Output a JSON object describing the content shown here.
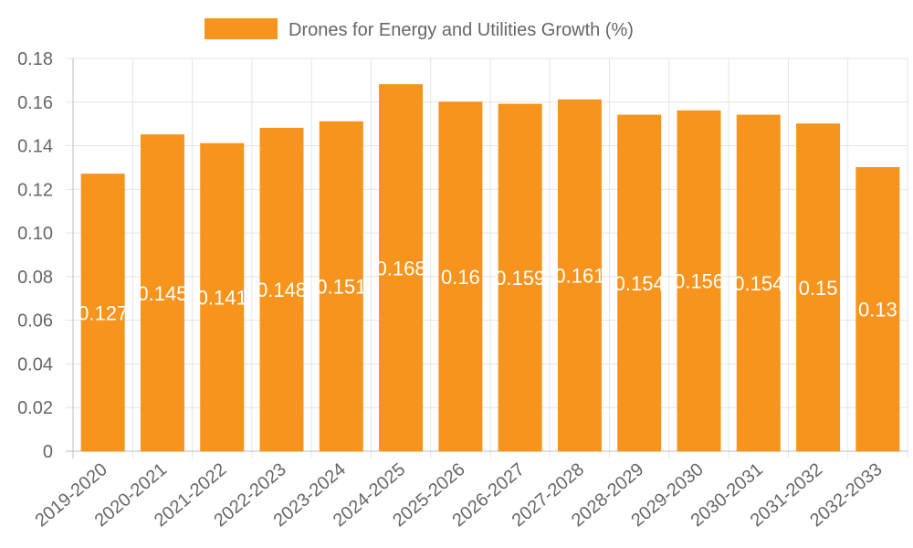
{
  "chart_data": {
    "type": "bar",
    "legend": {
      "label": "Drones for Energy and Utilities Growth (%)",
      "position": "top"
    },
    "categories": [
      "2019-2020",
      "2020-2021",
      "2021-2022",
      "2022-2023",
      "2023-2024",
      "2024-2025",
      "2025-2026",
      "2026-2027",
      "2027-2028",
      "2028-2029",
      "2029-2030",
      "2030-2031",
      "2031-2032",
      "2032-2033"
    ],
    "series": [
      {
        "name": "Drones for Energy and Utilities Growth (%)",
        "values": [
          0.127,
          0.145,
          0.141,
          0.148,
          0.151,
          0.168,
          0.16,
          0.159,
          0.161,
          0.154,
          0.156,
          0.154,
          0.15,
          0.13
        ],
        "color": "#f7941e",
        "border_color": "#f7941e"
      }
    ],
    "data_labels": [
      "0.127",
      "0.145",
      "0.141",
      "0.148",
      "0.151",
      "0.168",
      "0.16",
      "0.159",
      "0.161",
      "0.154",
      "0.156",
      "0.154",
      "0.15",
      "0.13"
    ],
    "y_ticks": [
      "0",
      "0.02",
      "0.04",
      "0.06",
      "0.08",
      "0.10",
      "0.12",
      "0.14",
      "0.16",
      "0.18"
    ],
    "ylim": [
      0,
      0.18
    ],
    "grid": true,
    "xlabel": "",
    "ylabel": ""
  }
}
